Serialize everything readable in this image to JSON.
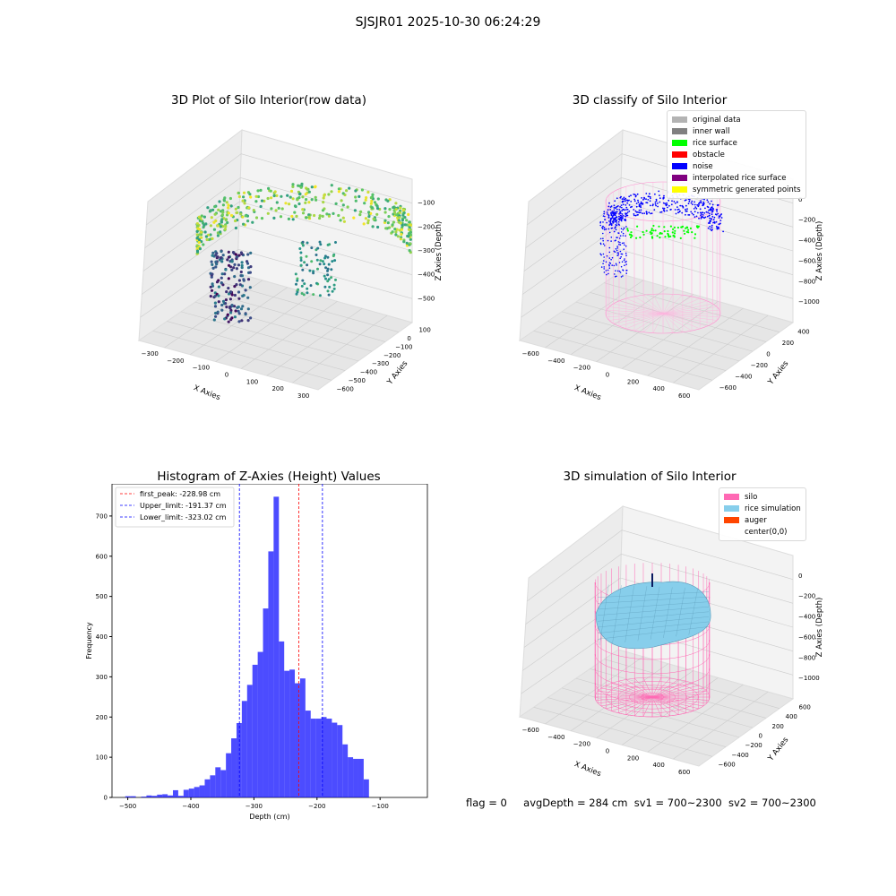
{
  "suptitle": "SJSJR01 2025-10-30 06:24:29",
  "panels": {
    "raw": {
      "title": "3D Plot of Silo Interior(row data)",
      "xlabel": "X Axies",
      "ylabel": "Y Axies",
      "zlabel": "Z Axies (Depth)",
      "xticks": [
        "−300",
        "−200",
        "−100",
        "0",
        "100",
        "200",
        "300"
      ],
      "yticks": [
        "100",
        "0",
        "−100",
        "−200",
        "−300",
        "−400",
        "−500",
        "−600"
      ],
      "zticks": [
        "−100",
        "−200",
        "−300",
        "−400",
        "−500"
      ]
    },
    "classify": {
      "title": "3D classify of Silo Interior",
      "xlabel": "X Axies",
      "ylabel": "Y Axies",
      "zlabel": "Z Axies (Depth)",
      "xticks": [
        "−600",
        "−400",
        "−200",
        "0",
        "200",
        "400",
        "600"
      ],
      "yticks": [
        "400",
        "200",
        "0",
        "−200",
        "−400",
        "−600"
      ],
      "zticks": [
        "0",
        "−200",
        "−400",
        "−600",
        "−800",
        "−1000"
      ],
      "legend": [
        {
          "label": "original data",
          "color": "#b3b3b3"
        },
        {
          "label": "inner wall",
          "color": "#808080"
        },
        {
          "label": "rice surface",
          "color": "#00ff00"
        },
        {
          "label": "obstacle",
          "color": "#ff0000"
        },
        {
          "label": "noise",
          "color": "#0000ff"
        },
        {
          "label": "interpolated rice surface",
          "color": "#800080"
        },
        {
          "label": "symmetric generated points",
          "color": "#ffff00"
        }
      ]
    },
    "simulation": {
      "title": "3D simulation of Silo Interior",
      "xlabel": "X Axies",
      "ylabel": "Y Axies",
      "zlabel": "Z Axies (Depth)",
      "xticks": [
        "−600",
        "−400",
        "−200",
        "0",
        "200",
        "400",
        "600"
      ],
      "yticks": [
        "600",
        "400",
        "200",
        "0",
        "−200",
        "−400",
        "−600"
      ],
      "zticks": [
        "0",
        "−200",
        "−400",
        "−600",
        "−800",
        "−1000"
      ],
      "legend": [
        {
          "label": "silo",
          "color": "#ff69b4"
        },
        {
          "label": "rice simulation",
          "color": "#87ceeb"
        },
        {
          "label": "auger",
          "color": "#ff4500"
        },
        {
          "label": "center(0,0)",
          "color": "#ffffff"
        }
      ]
    }
  },
  "chart_data": [
    {
      "type": "bar",
      "title": "Histogram of Z-Axies (Height) Values",
      "xlabel": "Depth (cm)",
      "ylabel": "Frequency",
      "xlim": [
        -525,
        -25
      ],
      "ylim": [
        0,
        780
      ],
      "xticks": [
        -500,
        -400,
        -300,
        -200,
        -100
      ],
      "yticks": [
        0,
        100,
        200,
        300,
        400,
        500,
        600,
        700
      ],
      "bin_width": 8.4,
      "bin_start": -504,
      "values": [
        3,
        3,
        0,
        2,
        5,
        4,
        7,
        8,
        5,
        18,
        4,
        19,
        22,
        26,
        30,
        45,
        55,
        75,
        68,
        110,
        147,
        185,
        240,
        280,
        330,
        362,
        470,
        612,
        748,
        388,
        315,
        318,
        284,
        296,
        216,
        196,
        196,
        200,
        196,
        186,
        180,
        132,
        100,
        96,
        96,
        45
      ],
      "color": "#0000ff",
      "lines": [
        {
          "label": "first_peak: -228.98 cm",
          "value": -228.98,
          "color": "#ff0000"
        },
        {
          "label": "Upper_limit: -191.37 cm",
          "value": -191.37,
          "color": "#0000ff"
        },
        {
          "label": "Lower_limit: -323.02 cm",
          "value": -323.02,
          "color": "#0000ff"
        }
      ]
    }
  ],
  "footer": {
    "flag": "flag = 0",
    "avg": "avgDepth = 284 cm",
    "sv1": "sv1 = 700~2300",
    "sv2": "sv2 = 700~2300"
  }
}
